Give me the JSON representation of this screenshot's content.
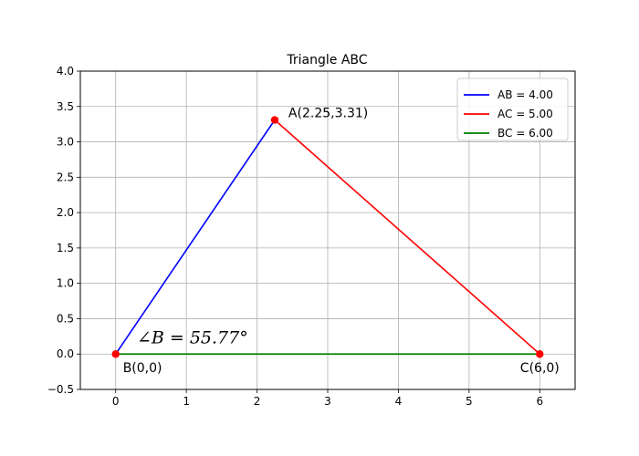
{
  "chart_data": {
    "type": "line",
    "title": "Triangle ABC",
    "xlabel": "",
    "ylabel": "",
    "xlim": [
      -0.5,
      6.5
    ],
    "ylim": [
      -0.5,
      4.0
    ],
    "x_ticks": [
      0,
      1,
      2,
      3,
      4,
      5,
      6
    ],
    "x_tick_labels": [
      "0",
      "1",
      "2",
      "3",
      "4",
      "5",
      "6"
    ],
    "y_ticks": [
      -0.5,
      0.0,
      0.5,
      1.0,
      1.5,
      2.0,
      2.5,
      3.0,
      3.5,
      4.0
    ],
    "y_tick_labels": [
      "−0.5",
      "0.0",
      "0.5",
      "1.0",
      "1.5",
      "2.0",
      "2.5",
      "3.0",
      "3.5",
      "4.0"
    ],
    "grid": true,
    "legend_position": "top-right",
    "series": [
      {
        "name": "AB = 4.00",
        "color": "#0000ff",
        "points": [
          [
            0,
            0
          ],
          [
            2.25,
            3.31
          ]
        ]
      },
      {
        "name": "AC = 5.00",
        "color": "#ff0000",
        "points": [
          [
            2.25,
            3.31
          ],
          [
            6,
            0
          ]
        ]
      },
      {
        "name": "BC = 6.00",
        "color": "#008000",
        "points": [
          [
            0,
            0
          ],
          [
            6,
            0
          ]
        ]
      }
    ],
    "vertices": [
      {
        "label": "A(2.25,3.31)",
        "x": 2.25,
        "y": 3.31
      },
      {
        "label": "B(0,0)",
        "x": 0,
        "y": 0
      },
      {
        "label": "C(6,0)",
        "x": 6,
        "y": 0
      }
    ],
    "vertex_color": "#ff0000",
    "annotations": [
      {
        "text": "∠B = 55.77°",
        "x": 0.3,
        "y": 0.15
      }
    ]
  }
}
